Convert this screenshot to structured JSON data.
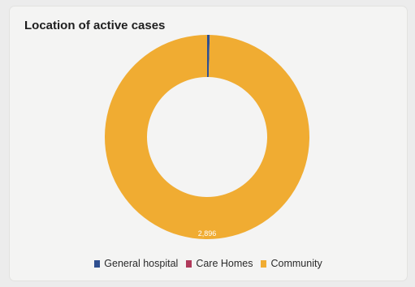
{
  "chart_data": {
    "type": "pie",
    "title": "Location of active cases",
    "donut": true,
    "series": [
      {
        "name": "General hospital",
        "value": 12,
        "color": "#2f4f8f"
      },
      {
        "name": "Care Homes",
        "value": 0,
        "color": "#b03a5b"
      },
      {
        "name": "Community",
        "value": 2896,
        "color": "#f0ac32"
      }
    ],
    "data_labels": [
      "2,896"
    ],
    "legend_position": "bottom"
  }
}
